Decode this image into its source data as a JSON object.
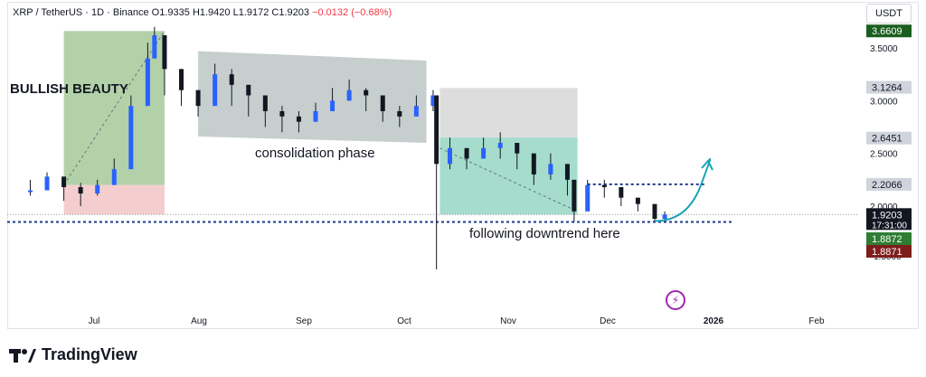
{
  "header": {
    "symbol": "XRP / TetherUS · 1D · Binance",
    "open": "O1.9335",
    "high": "H1.9420",
    "low": "L1.9172",
    "close": "C1.9203",
    "change": "−0.0132 (−0.68%)"
  },
  "currency_label": "USDT",
  "brand": "TradingView",
  "colors": {
    "up": "#26a69a",
    "down": "#000000",
    "candle_up_body": "#2962ff",
    "bullish_zone": "#a5c99a",
    "bullish_zone_bottom": "#f3c9c9",
    "consolidation_zone": "#b8c3c2",
    "downtrend_top": "#d9d9d9",
    "downtrend_bottom": "#8fd3bf",
    "dotted_line": "#1a3a8f",
    "arrow": "#1aa3b3",
    "label_green": "#2e7d32",
    "label_red": "#7f1d1d",
    "label_dark": "#131722"
  },
  "annotations": {
    "bullish": "BULLISH BEAUTY",
    "consolidation": "consolidation phase",
    "downtrend": "following downtrend here"
  },
  "chart_data": {
    "type": "candlestick",
    "title": "XRP / TetherUS · 1D · Binance",
    "ylim": [
      1.25,
      3.75
    ],
    "y_ticks": [
      3.5,
      3.0,
      2.5,
      2.0
    ],
    "x_ticks": [
      "Jul",
      "Aug",
      "Sep",
      "Oct",
      "Nov",
      "Dec",
      "2026",
      "Feb"
    ],
    "price_labels": [
      {
        "value": "3.6609",
        "style": "dark-green"
      },
      {
        "value": "3.1264",
        "style": "grey"
      },
      {
        "value": "2.6451",
        "style": "grey"
      },
      {
        "value": "2.2066",
        "style": "grey"
      },
      {
        "value": "1.9203",
        "sub": "17:31:00",
        "style": "dark"
      },
      {
        "value": "1.8872",
        "style": "green"
      },
      {
        "value": "1.8871",
        "style": "red"
      }
    ],
    "partial_tick_labels": [
      "1.5000"
    ],
    "series": [
      {
        "x": [
          "Jun 12",
          "Jun 17",
          "Jun 22",
          "Jun 27",
          "Jul 2",
          "Jul 7",
          "Jul 12",
          "Jul 17",
          "Jul 19",
          "Jul 22",
          "Jul 27",
          "Aug 1",
          "Aug 6",
          "Aug 11",
          "Aug 16",
          "Aug 21",
          "Aug 26",
          "Aug 31",
          "Sep 5",
          "Sep 10",
          "Sep 15",
          "Sep 20",
          "Sep 25",
          "Sep 30",
          "Oct 5",
          "Oct 10",
          "Oct 11",
          "Oct 15",
          "Oct 20",
          "Oct 25",
          "Oct 30",
          "Nov 4",
          "Nov 9",
          "Nov 14",
          "Nov 19",
          "Nov 21",
          "Nov 25",
          "Nov 30",
          "Dec 5",
          "Dec 10",
          "Dec 15",
          "Dec 18"
        ],
        "y": [
          2.15,
          2.28,
          2.18,
          2.12,
          2.2,
          2.35,
          2.95,
          3.4,
          3.62,
          3.3,
          3.1,
          2.95,
          3.25,
          3.15,
          3.05,
          2.9,
          2.85,
          2.8,
          2.9,
          3.0,
          3.1,
          3.05,
          2.9,
          2.85,
          2.95,
          3.05,
          2.4,
          2.55,
          2.45,
          2.55,
          2.6,
          2.5,
          2.3,
          2.4,
          2.25,
          1.95,
          2.2,
          2.18,
          2.08,
          2.02,
          1.88,
          1.92
        ],
        "low": [
          2.1,
          2.15,
          2.05,
          2.0,
          2.1,
          2.3,
          2.8,
          3.2,
          3.4,
          3.05,
          2.95,
          2.85,
          3.05,
          2.95,
          2.85,
          2.75,
          2.7,
          2.7,
          2.8,
          2.9,
          3.0,
          2.9,
          2.8,
          2.75,
          2.85,
          2.9,
          1.4,
          2.35,
          2.35,
          2.45,
          2.45,
          2.35,
          2.2,
          2.25,
          2.1,
          1.85,
          2.05,
          2.08,
          2.0,
          1.95,
          1.85,
          1.87
        ],
        "high": [
          2.25,
          2.32,
          2.28,
          2.22,
          2.25,
          2.45,
          3.05,
          3.55,
          3.7,
          3.5,
          3.2,
          3.05,
          3.35,
          3.3,
          3.15,
          3.0,
          2.95,
          2.9,
          2.98,
          3.12,
          3.2,
          3.12,
          3.0,
          2.95,
          3.05,
          3.1,
          2.6,
          2.65,
          2.55,
          2.65,
          2.7,
          2.6,
          2.45,
          2.5,
          2.35,
          2.05,
          2.25,
          2.25,
          2.15,
          2.08,
          1.98,
          1.95
        ]
      }
    ]
  }
}
